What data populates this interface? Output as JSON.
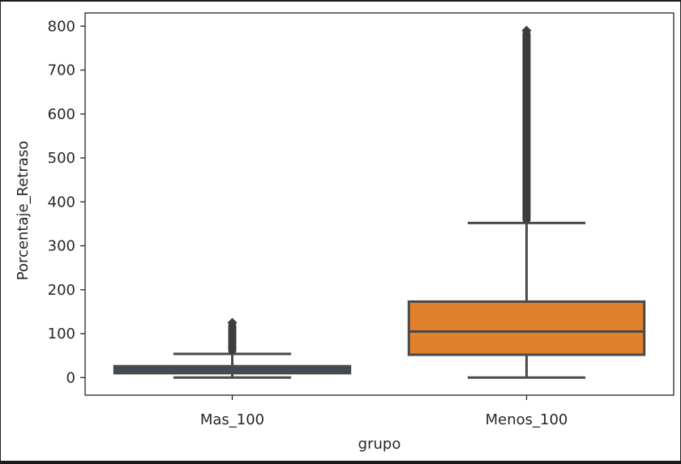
{
  "chart_data": {
    "type": "box",
    "xlabel": "grupo",
    "ylabel": "Porcentaje_Retraso",
    "ylim": [
      -40,
      830
    ],
    "yticks": [
      0,
      100,
      200,
      300,
      400,
      500,
      600,
      700,
      800
    ],
    "grid": false,
    "categories": [
      "Mas_100",
      "Menos_100"
    ],
    "boxes": [
      {
        "name": "Mas_100",
        "color": "#3a4b5a",
        "whisker_low": 0,
        "q1": 10,
        "median": 17,
        "q3": 26,
        "whisker_high": 54,
        "outliers_from": 54,
        "outliers_to": 125
      },
      {
        "name": "Menos_100",
        "color": "#e1812c",
        "whisker_low": 0,
        "q1": 52,
        "median": 105,
        "q3": 173,
        "whisker_high": 352,
        "outliers_from": 352,
        "outliers_to": 790
      }
    ]
  }
}
